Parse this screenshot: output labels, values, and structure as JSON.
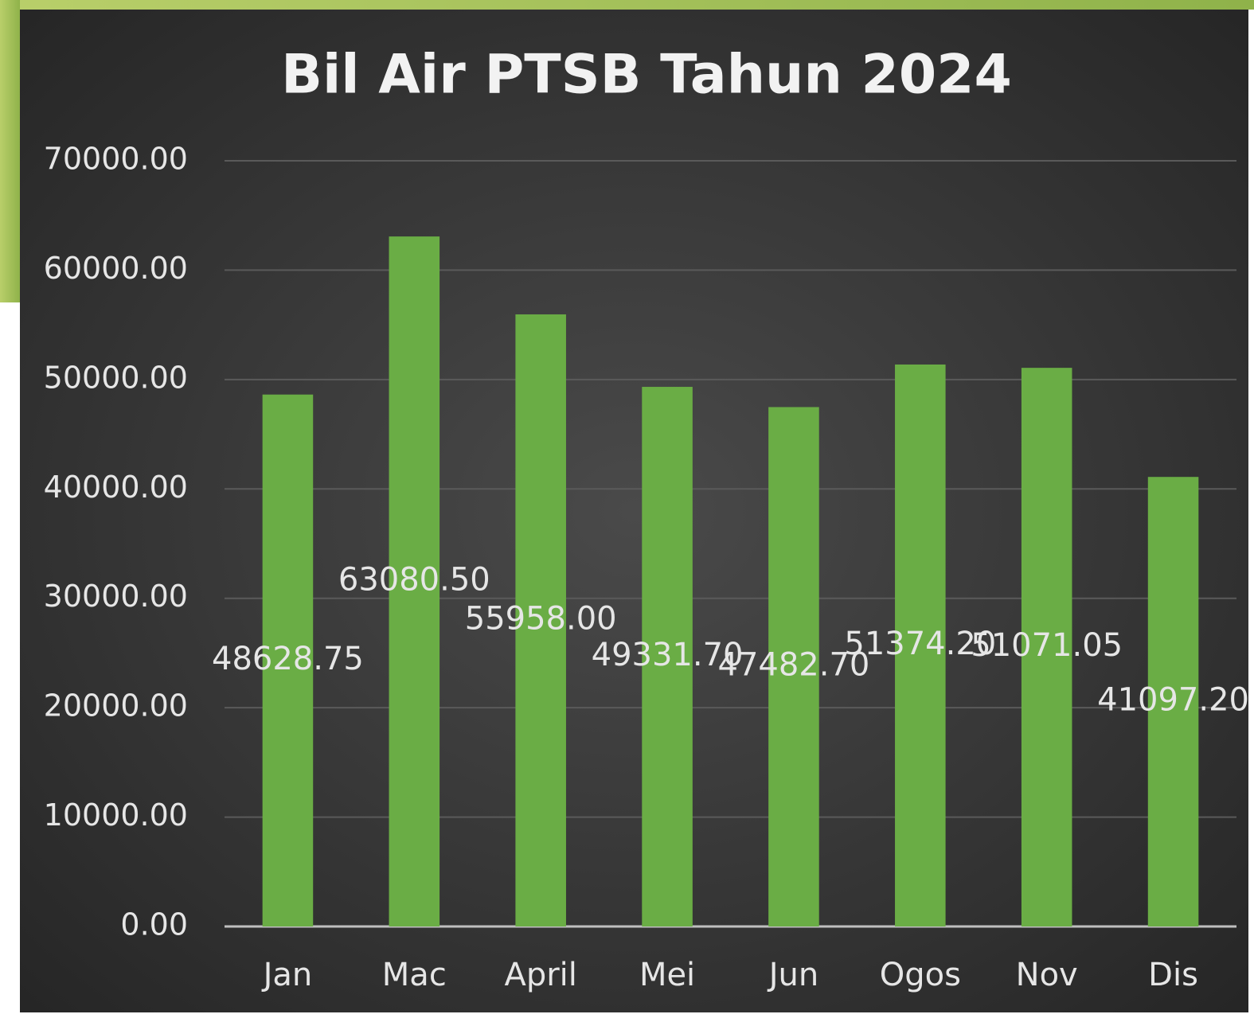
{
  "chart_data": {
    "type": "bar",
    "title": "Bil Air PTSB Tahun 2024",
    "categories": [
      "Jan",
      "Mac",
      "April",
      "Mei",
      "Jun",
      "Ogos",
      "Nov",
      "Dis"
    ],
    "values": [
      48628.75,
      63080.5,
      55958,
      49331.7,
      47482.7,
      51374.2,
      51071.05,
      41097.2
    ],
    "value_labels": [
      "48628.75",
      "63080.50",
      "55958.00",
      "49331.70",
      "47482.70",
      "51374.20",
      "51071.05",
      "41097.20"
    ],
    "color": "#6aad45",
    "ylim": [
      0,
      70000
    ],
    "yticks": [
      {
        "value": 0,
        "label": "0.00"
      },
      {
        "value": 10000,
        "label": "10000.00"
      },
      {
        "value": 20000,
        "label": "20000.00"
      },
      {
        "value": 30000,
        "label": "30000.00"
      },
      {
        "value": 40000,
        "label": "40000.00"
      },
      {
        "value": 50000,
        "label": "50000.00"
      },
      {
        "value": 60000,
        "label": "60000.00"
      },
      {
        "value": 70000,
        "label": "70000.00"
      }
    ],
    "grid": true
  }
}
